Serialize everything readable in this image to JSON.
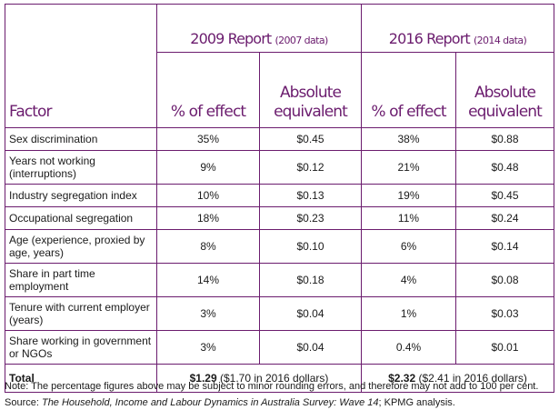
{
  "header": {
    "report_2009": "2009 Report",
    "report_2009_sub": "(2007 data)",
    "report_2016": "2016 Report",
    "report_2016_sub": "(2014 data)",
    "factor": "Factor",
    "pct_effect": "% of effect",
    "absolute_line1": "Absolute",
    "absolute_line2": "equivalent"
  },
  "rows": [
    {
      "factor": "Sex discrimination",
      "p2009": "35%",
      "a2009": "$0.45",
      "p2016": "38%",
      "a2016": "$0.88"
    },
    {
      "factor": "Years not working (interruptions)",
      "p2009": "9%",
      "a2009": "$0.12",
      "p2016": "21%",
      "a2016": "$0.48"
    },
    {
      "factor": "Industry segregation index",
      "p2009": "10%",
      "a2009": "$0.13",
      "p2016": "19%",
      "a2016": "$0.45"
    },
    {
      "factor": "Occupational segregation",
      "p2009": "18%",
      "a2009": "$0.23",
      "p2016": "11%",
      "a2016": "$0.24"
    },
    {
      "factor": "Age (experience, proxied by age, years)",
      "p2009": "8%",
      "a2009": "$0.10",
      "p2016": "6%",
      "a2016": "$0.14"
    },
    {
      "factor": "Share in part time employment",
      "p2009": "14%",
      "a2009": "$0.18",
      "p2016": "4%",
      "a2016": "$0.08"
    },
    {
      "factor": "Tenure with current employer (years)",
      "p2009": "3%",
      "a2009": "$0.04",
      "p2016": "1%",
      "a2016": "$0.03"
    },
    {
      "factor": "Share working in government or NGOs",
      "p2009": "3%",
      "a2009": "$0.04",
      "p2016": "0.4%",
      "a2016": "$0.01"
    }
  ],
  "total": {
    "label": "Total",
    "v2009": "$1.29",
    "v2009_note": "($1.70 in 2016 dollars)",
    "v2016": "$2.32",
    "v2016_note": "($2.41 in 2016 dollars)"
  },
  "notes": {
    "note": "Note: The percentage figures above may be subject to minor rounding errors, and therefore may not add to 100 per cent.",
    "source_prefix": "Source: ",
    "source_title": "The Household, Income and Labour Dynamics in Australia Survey: Wave 14",
    "source_suffix": "; KPMG analysis."
  }
}
